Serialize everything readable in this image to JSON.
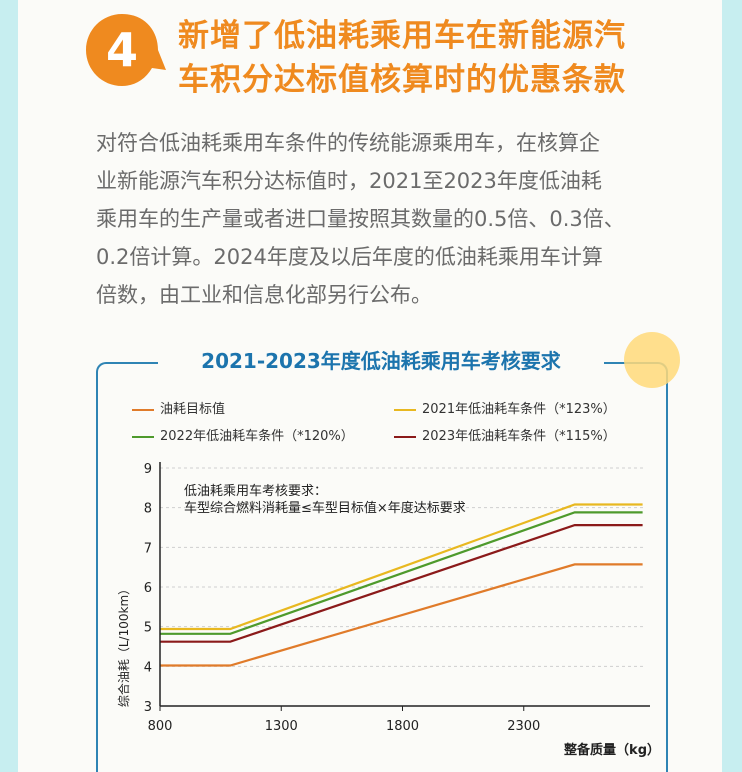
{
  "section": {
    "badge_number": "4",
    "heading_line1": "新增了低油耗乘用车在新能源汽",
    "heading_line2": "车积分达标值核算时的优惠条款",
    "paragraph_lines": [
      "对符合低油耗乘用车条件的传统能源乘用车，在核算企",
      "业新能源汽车积分达标值时，2021至2023年度低油耗",
      "乘用车的生产量或者进口量按照其数量的0.5倍、0.3倍、",
      "0.2倍计算。2024年度及以后年度的低油耗乘用车计算",
      "倍数，由工业和信息化部另行公布。"
    ]
  },
  "colors": {
    "accent_orange": "#ef8a1f",
    "title_blue": "#1c74ad",
    "series_target": "#e07b2a",
    "series_2021": "#e8b820",
    "series_2022": "#4e9a2c",
    "series_2023": "#8b1a1a"
  },
  "chart_data": {
    "type": "line",
    "title": "2021-2023年度低油耗乘用车考核要求",
    "xlabel": "整备质量（kg）",
    "ylabel": "综合油耗（L/100km）",
    "xlim": [
      800,
      2800
    ],
    "ylim": [
      3,
      9
    ],
    "x_ticks": [
      800,
      1300,
      1800,
      2300
    ],
    "y_ticks": [
      3,
      4,
      5,
      6,
      7,
      8,
      9
    ],
    "legend_placement": "top",
    "annotation": [
      "低油耗乘用车考核要求：",
      "车型综合燃料消耗量≤车型目标值×年度达标要求"
    ],
    "series": [
      {
        "name": "油耗目标值",
        "color": "#e07b2a",
        "x": [
          800,
          1090,
          2510,
          2790
        ],
        "y": [
          4.02,
          4.02,
          6.57,
          6.57
        ]
      },
      {
        "name": "2021年低油耗车条件（*123%）",
        "color": "#e8b820",
        "x": [
          800,
          1090,
          2510,
          2790
        ],
        "y": [
          4.94,
          4.94,
          8.08,
          8.08
        ]
      },
      {
        "name": "2022年低油耗车条件（*120%）",
        "color": "#4e9a2c",
        "x": [
          800,
          1090,
          2510,
          2790
        ],
        "y": [
          4.82,
          4.82,
          7.88,
          7.88
        ]
      },
      {
        "name": "2023年低油耗车条件（*115%）",
        "color": "#8b1a1a",
        "x": [
          800,
          1090,
          2510,
          2790
        ],
        "y": [
          4.62,
          4.62,
          7.56,
          7.56
        ]
      }
    ]
  }
}
